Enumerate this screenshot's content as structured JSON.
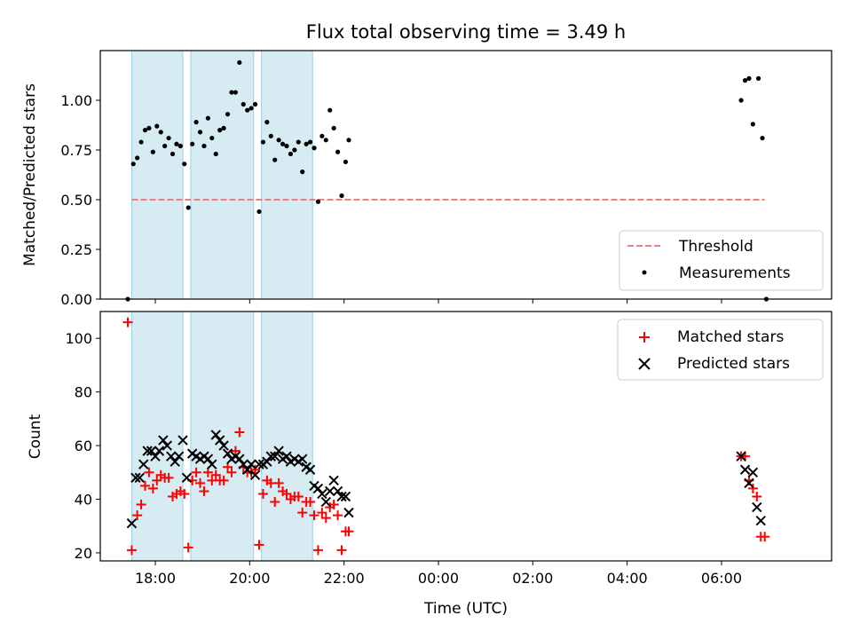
{
  "figure": {
    "title": "Flux total observing time = 3.49 h"
  },
  "chart_data": [
    {
      "type": "scatter",
      "ylabel": "Matched/Predicted stars",
      "xlim": [
        "16:50",
        "08:20"
      ],
      "ylim": [
        0,
        1.25
      ],
      "yticks": [
        0.0,
        0.25,
        0.5,
        0.75,
        1.0
      ],
      "ytick_labels": [
        "0.00",
        "0.25",
        "0.50",
        "0.75",
        "1.00"
      ],
      "legend": {
        "placement": "bottom-right"
      },
      "shaded_intervals": [
        [
          "17:30",
          "18:35"
        ],
        [
          "18:45",
          "20:05"
        ],
        [
          "20:15",
          "21:20"
        ]
      ],
      "threshold": {
        "name": "Threshold",
        "value": 0.5,
        "x_start": "17:30",
        "x_end": "06:55",
        "color": "#f08080"
      },
      "series": [
        {
          "name": "Measurements",
          "color": "#000000",
          "points": [
            [
              "17:25",
              0.0
            ],
            [
              "17:32",
              0.68
            ],
            [
              "17:37",
              0.71
            ],
            [
              "17:42",
              0.79
            ],
            [
              "17:47",
              0.85
            ],
            [
              "17:52",
              0.86
            ],
            [
              "17:57",
              0.74
            ],
            [
              "18:02",
              0.87
            ],
            [
              "18:07",
              0.84
            ],
            [
              "18:12",
              0.77
            ],
            [
              "18:17",
              0.81
            ],
            [
              "18:22",
              0.73
            ],
            [
              "18:27",
              0.78
            ],
            [
              "18:32",
              0.77
            ],
            [
              "18:37",
              0.68
            ],
            [
              "18:42",
              0.46
            ],
            [
              "18:47",
              0.78
            ],
            [
              "18:52",
              0.89
            ],
            [
              "18:57",
              0.84
            ],
            [
              "19:02",
              0.77
            ],
            [
              "19:07",
              0.91
            ],
            [
              "19:12",
              0.81
            ],
            [
              "19:17",
              0.73
            ],
            [
              "19:22",
              0.85
            ],
            [
              "19:27",
              0.86
            ],
            [
              "19:32",
              0.93
            ],
            [
              "19:37",
              1.04
            ],
            [
              "19:42",
              1.04
            ],
            [
              "19:47",
              1.19
            ],
            [
              "19:52",
              0.98
            ],
            [
              "19:57",
              0.95
            ],
            [
              "20:02",
              0.96
            ],
            [
              "20:07",
              0.98
            ],
            [
              "20:12",
              0.44
            ],
            [
              "20:17",
              0.79
            ],
            [
              "20:22",
              0.89
            ],
            [
              "20:27",
              0.82
            ],
            [
              "20:32",
              0.7
            ],
            [
              "20:37",
              0.8
            ],
            [
              "20:42",
              0.78
            ],
            [
              "20:47",
              0.77
            ],
            [
              "20:52",
              0.73
            ],
            [
              "20:57",
              0.75
            ],
            [
              "21:02",
              0.79
            ],
            [
              "21:07",
              0.64
            ],
            [
              "21:12",
              0.78
            ],
            [
              "21:17",
              0.79
            ],
            [
              "21:22",
              0.76
            ],
            [
              "21:27",
              0.49
            ],
            [
              "21:32",
              0.82
            ],
            [
              "21:37",
              0.8
            ],
            [
              "21:42",
              0.95
            ],
            [
              "21:47",
              0.86
            ],
            [
              "21:52",
              0.74
            ],
            [
              "21:57",
              0.52
            ],
            [
              "22:02",
              0.69
            ],
            [
              "22:06",
              0.8
            ],
            [
              "06:25",
              1.0
            ],
            [
              "06:30",
              1.1
            ],
            [
              "06:35",
              1.11
            ],
            [
              "06:40",
              0.88
            ],
            [
              "06:47",
              1.11
            ],
            [
              "06:52",
              0.81
            ],
            [
              "06:57",
              0.0
            ]
          ]
        }
      ]
    },
    {
      "type": "scatter",
      "xlabel": "Time (UTC)",
      "ylabel": "Count",
      "xlim": [
        "16:50",
        "08:20"
      ],
      "ylim": [
        17,
        110
      ],
      "yticks": [
        20,
        40,
        60,
        80,
        100
      ],
      "xticks": [
        "18:00",
        "20:00",
        "22:00",
        "00:00",
        "02:00",
        "04:00",
        "06:00"
      ],
      "legend": {
        "placement": "top-right"
      },
      "shaded_intervals": [
        [
          "17:30",
          "18:35"
        ],
        [
          "18:45",
          "20:05"
        ],
        [
          "20:15",
          "21:20"
        ]
      ],
      "series": [
        {
          "name": "Matched stars",
          "marker": "plus",
          "color": "#ff0000",
          "points": [
            [
              "17:25",
              106
            ],
            [
              "17:30",
              21
            ],
            [
              "17:37",
              34
            ],
            [
              "17:42",
              38
            ],
            [
              "17:47",
              45
            ],
            [
              "17:52",
              50
            ],
            [
              "17:57",
              44
            ],
            [
              "18:02",
              47
            ],
            [
              "18:07",
              49
            ],
            [
              "18:12",
              48
            ],
            [
              "18:17",
              48
            ],
            [
              "18:22",
              41
            ],
            [
              "18:27",
              42
            ],
            [
              "18:32",
              43
            ],
            [
              "18:37",
              42
            ],
            [
              "18:42",
              22
            ],
            [
              "18:47",
              47
            ],
            [
              "18:52",
              50
            ],
            [
              "18:57",
              46
            ],
            [
              "19:02",
              43
            ],
            [
              "19:07",
              50
            ],
            [
              "19:12",
              47
            ],
            [
              "19:17",
              49
            ],
            [
              "19:22",
              47
            ],
            [
              "19:27",
              47
            ],
            [
              "19:32",
              52
            ],
            [
              "19:37",
              50
            ],
            [
              "19:42",
              58
            ],
            [
              "19:47",
              65
            ],
            [
              "19:52",
              52
            ],
            [
              "19:57",
              50
            ],
            [
              "20:02",
              50
            ],
            [
              "20:07",
              51
            ],
            [
              "20:12",
              23
            ],
            [
              "20:17",
              42
            ],
            [
              "20:22",
              47
            ],
            [
              "20:27",
              46
            ],
            [
              "20:32",
              39
            ],
            [
              "20:37",
              46
            ],
            [
              "20:42",
              43
            ],
            [
              "20:47",
              42
            ],
            [
              "20:52",
              40
            ],
            [
              "20:57",
              41
            ],
            [
              "21:02",
              41
            ],
            [
              "21:07",
              35
            ],
            [
              "21:12",
              39
            ],
            [
              "21:17",
              39
            ],
            [
              "21:22",
              34
            ],
            [
              "21:27",
              21
            ],
            [
              "21:32",
              35
            ],
            [
              "21:37",
              33
            ],
            [
              "21:42",
              37
            ],
            [
              "21:47",
              38
            ],
            [
              "21:52",
              34
            ],
            [
              "21:57",
              21
            ],
            [
              "22:02",
              28
            ],
            [
              "22:06",
              28
            ],
            [
              "06:25",
              56
            ],
            [
              "06:30",
              56
            ],
            [
              "06:35",
              47
            ],
            [
              "06:40",
              44
            ],
            [
              "06:45",
              41
            ],
            [
              "06:50",
              26
            ],
            [
              "06:55",
              26
            ]
          ]
        },
        {
          "name": "Predicted stars",
          "marker": "x",
          "color": "#000000",
          "points": [
            [
              "17:30",
              31
            ],
            [
              "17:35",
              48
            ],
            [
              "17:40",
              48
            ],
            [
              "17:45",
              53
            ],
            [
              "17:50",
              58
            ],
            [
              "17:55",
              58
            ],
            [
              "18:00",
              56
            ],
            [
              "18:05",
              58
            ],
            [
              "18:10",
              62
            ],
            [
              "18:15",
              60
            ],
            [
              "18:20",
              56
            ],
            [
              "18:25",
              54
            ],
            [
              "18:30",
              56
            ],
            [
              "18:35",
              62
            ],
            [
              "18:40",
              48
            ],
            [
              "18:47",
              57
            ],
            [
              "18:52",
              56
            ],
            [
              "18:57",
              55
            ],
            [
              "19:02",
              56
            ],
            [
              "19:07",
              55
            ],
            [
              "19:12",
              53
            ],
            [
              "19:17",
              64
            ],
            [
              "19:22",
              62
            ],
            [
              "19:27",
              60
            ],
            [
              "19:32",
              57
            ],
            [
              "19:37",
              55
            ],
            [
              "19:42",
              56
            ],
            [
              "19:47",
              55
            ],
            [
              "19:52",
              53
            ],
            [
              "19:57",
              51
            ],
            [
              "20:02",
              53
            ],
            [
              "20:07",
              49
            ],
            [
              "20:12",
              53
            ],
            [
              "20:17",
              53
            ],
            [
              "20:22",
              54
            ],
            [
              "20:27",
              56
            ],
            [
              "20:32",
              56
            ],
            [
              "20:37",
              58
            ],
            [
              "20:42",
              55
            ],
            [
              "20:47",
              56
            ],
            [
              "20:52",
              54
            ],
            [
              "20:57",
              55
            ],
            [
              "21:02",
              54
            ],
            [
              "21:07",
              55
            ],
            [
              "21:12",
              52
            ],
            [
              "21:17",
              51
            ],
            [
              "21:22",
              45
            ],
            [
              "21:27",
              44
            ],
            [
              "21:32",
              42
            ],
            [
              "21:37",
              39
            ],
            [
              "21:42",
              43
            ],
            [
              "21:47",
              47
            ],
            [
              "21:52",
              43
            ],
            [
              "21:57",
              41
            ],
            [
              "22:02",
              41
            ],
            [
              "22:06",
              35
            ],
            [
              "06:25",
              56
            ],
            [
              "06:30",
              51
            ],
            [
              "06:35",
              46
            ],
            [
              "06:40",
              50
            ],
            [
              "06:45",
              37
            ],
            [
              "06:50",
              32
            ]
          ]
        }
      ]
    }
  ]
}
